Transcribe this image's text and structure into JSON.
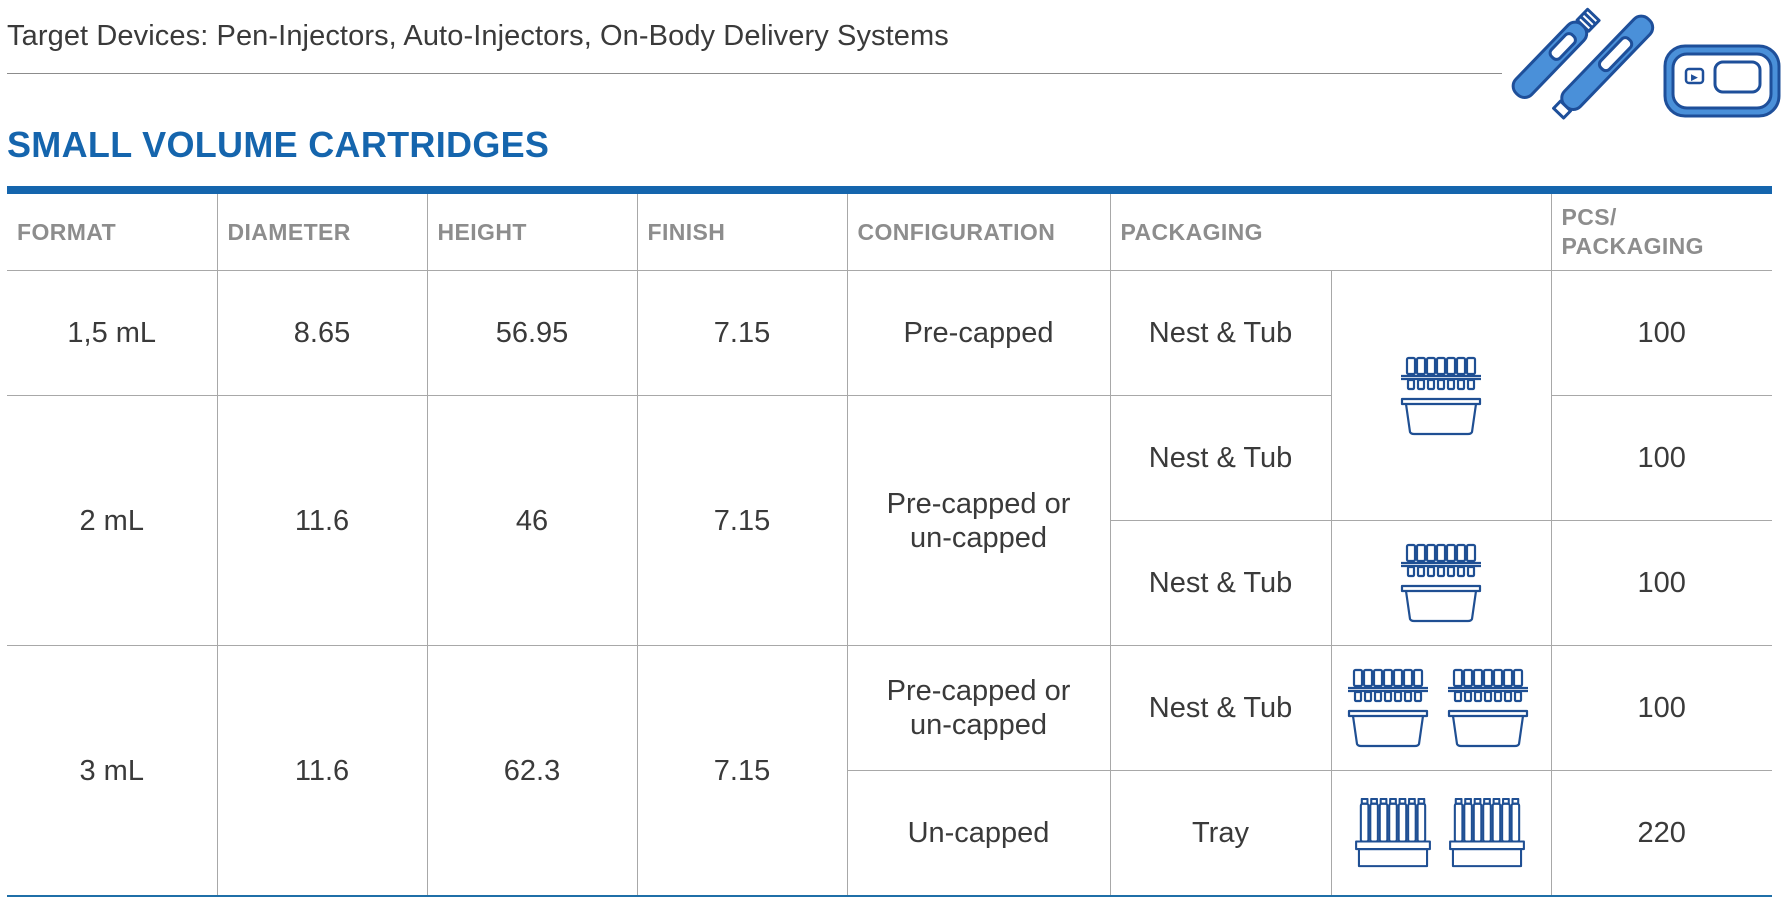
{
  "subtitle": "Target Devices: Pen-Injectors, Auto-Injectors, On-Body Delivery Systems",
  "heading": "SMALL VOLUME CARTRIDGES",
  "colors": {
    "accent": "#1565ad",
    "header_text": "#8d8d8d",
    "body_text": "#3a3a3a",
    "rule": "#a8a8a8"
  },
  "icons": {
    "devices": "pen-injector-auto-injector-on-body-device-icon",
    "nest_tub": "nest-and-tub-icon",
    "tray": "tray-icon"
  },
  "table": {
    "headers": {
      "format": "FORMAT",
      "diameter": "DIAMETER",
      "height": "HEIGHT",
      "finish": "FINISH",
      "configuration": "CONFIGURATION",
      "packaging": "PACKAGING",
      "pcs_line1": "PCS/",
      "pcs_line2": "PACKAGING"
    },
    "rows": [
      {
        "format": "1,5 mL",
        "diameter": "8.65",
        "height": "56.95",
        "finish": "7.15",
        "configuration": "Pre-capped",
        "packaging": "Nest & Tub",
        "pcs": "100"
      },
      {
        "format": "2 mL",
        "diameter": "11.6",
        "height": "46",
        "finish": "7.15",
        "configuration_line1": "Pre-capped or",
        "configuration_line2": "un-capped",
        "packaging": "Nest & Tub",
        "pcs": "100"
      },
      {
        "packaging": "Nest & Tub",
        "pcs": "100"
      },
      {
        "format": "3 mL",
        "diameter": "11.6",
        "height": "62.3",
        "finish": "7.15",
        "configuration_line1": "Pre-capped or",
        "configuration_line2": "un-capped",
        "packaging": "Nest & Tub",
        "pcs": "100"
      },
      {
        "configuration": "Un-capped",
        "packaging": "Tray",
        "pcs": "220"
      }
    ]
  }
}
